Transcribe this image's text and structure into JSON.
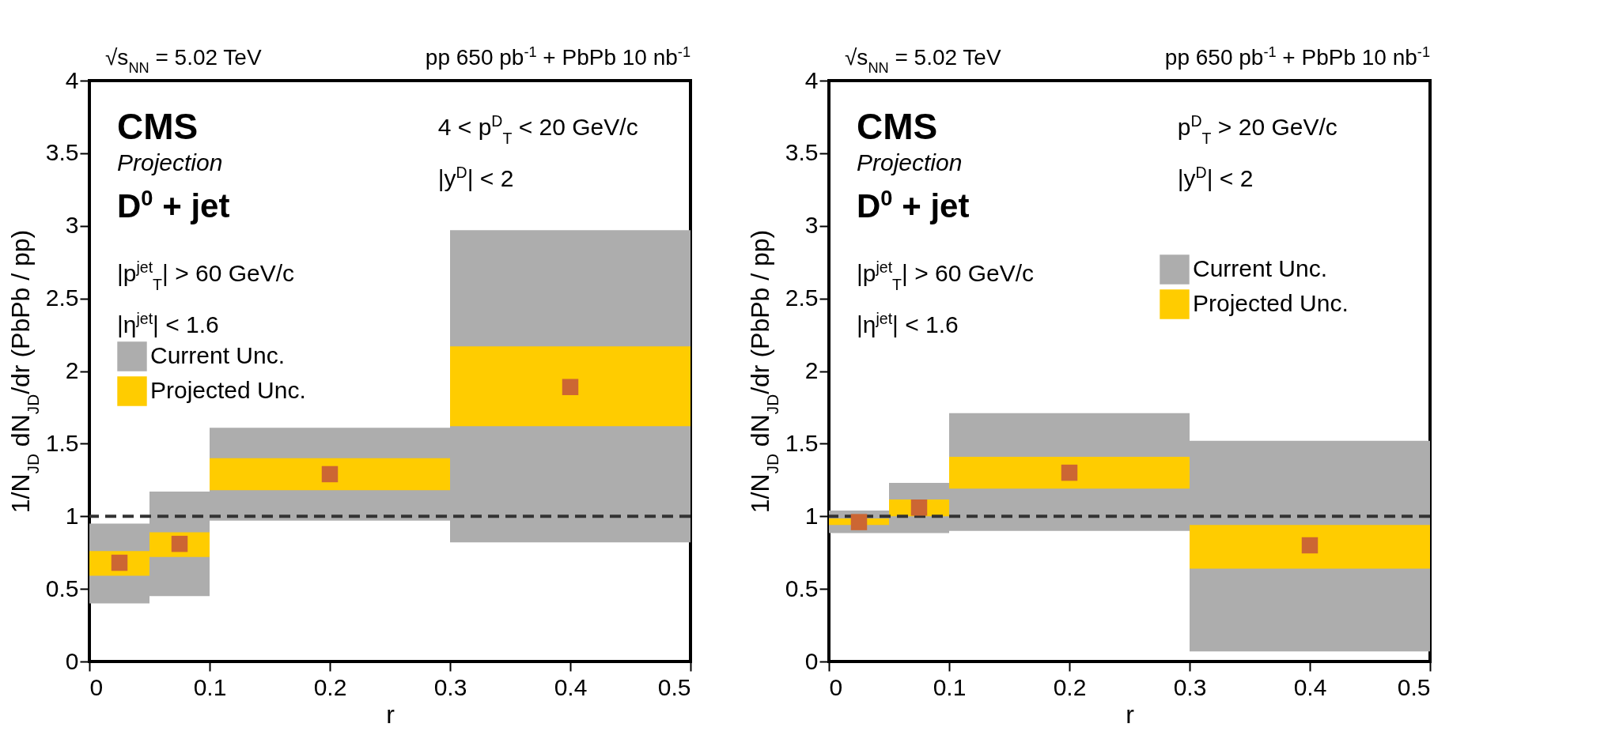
{
  "chart_data": [
    {
      "type": "histogram",
      "xlabel": "r",
      "ylabel": "1/N$_{JD}$ dN$_{JD}$/dr (PbPb / pp)",
      "xlim": [
        0,
        0.5
      ],
      "xticks": [
        0,
        0.1,
        0.2,
        0.3,
        0.4,
        0.5
      ],
      "ylim": [
        0,
        4
      ],
      "yticks": [
        0,
        0.5,
        1,
        1.5,
        2,
        2.5,
        3,
        3.5,
        4
      ],
      "grid": false,
      "legend": "left",
      "series": [
        {
          "name": "Current Unc.",
          "color": "#adadad",
          "bins": [
            0,
            0.05,
            0.1,
            0.3,
            0.5
          ],
          "base": [
            0.4,
            0.45,
            0.97,
            0.82
          ],
          "values": [
            0.55,
            0.72,
            0.64,
            2.15
          ]
        },
        {
          "name": "Projected Unc.",
          "color": "#ffcc00",
          "bins": [
            0,
            0.05,
            0.1,
            0.3,
            0.5
          ],
          "base": [
            0.59,
            0.72,
            1.18,
            1.62
          ],
          "values": [
            0.17,
            0.17,
            0.22,
            0.55
          ]
        },
        {
          "type": "scatter",
          "color": "#cc6633",
          "marker": "square",
          "x": [
            0.025,
            0.075,
            0.2,
            0.4
          ],
          "values": [
            0.68,
            0.81,
            1.29,
            1.89
          ]
        }
      ],
      "ref_lines": [
        {
          "axis": "y",
          "value": 1,
          "color": "#333333",
          "line_style": "dashed"
        }
      ],
      "annotations": [
        "√s$_{NN}$ = 5.02 TeV",
        "pp 650 pb$^{-1}$ + PbPb 10 nb$^{-1}$",
        "CMS",
        "Projection",
        "D$^{0}$ + jet",
        "|p$^{jet}$$_{T}$| > 60 GeV/c",
        "|η$^{jet}$| < 1.6",
        "4 < p$^{D}$$_{T}$ < 20 GeV/c",
        "|y$^{D}$| < 2"
      ]
    },
    {
      "type": "histogram",
      "xlabel": "r",
      "ylabel": "1/N$_{JD}$ dN$_{JD}$/dr (PbPb / pp)",
      "xlim": [
        0,
        0.5
      ],
      "xticks": [
        0,
        0.1,
        0.2,
        0.3,
        0.4,
        0.5
      ],
      "ylim": [
        0,
        4
      ],
      "yticks": [
        0,
        0.5,
        1,
        1.5,
        2,
        2.5,
        3,
        3.5,
        4
      ],
      "grid": false,
      "legend": "top right",
      "series": [
        {
          "name": "Current Unc.",
          "color": "#adadad",
          "bins": [
            0,
            0.05,
            0.1,
            0.3,
            0.5
          ],
          "base": [
            0.885,
            0.885,
            0.9,
            0.07
          ],
          "values": [
            0.155,
            0.345,
            0.81,
            1.45
          ]
        },
        {
          "name": "Projected Unc.",
          "color": "#ffcc00",
          "bins": [
            0,
            0.05,
            0.1,
            0.3,
            0.5
          ],
          "base": [
            0.94,
            1.0,
            1.19,
            0.64
          ],
          "values": [
            0.045,
            0.115,
            0.22,
            0.3
          ]
        },
        {
          "type": "scatter",
          "color": "#cc6633",
          "marker": "square",
          "x": [
            0.025,
            0.075,
            0.2,
            0.4
          ],
          "values": [
            0.96,
            1.06,
            1.3,
            0.8
          ]
        }
      ],
      "ref_lines": [
        {
          "axis": "y",
          "value": 1,
          "color": "#333333",
          "line_style": "dashed"
        }
      ],
      "annotations": [
        "√s$_{NN}$ = 5.02 TeV",
        "pp 650 pb$^{-1}$ + PbPb 10 nb$^{-1}$",
        "CMS",
        "Projection",
        "D$^{0}$ + jet",
        "|p$^{jet}$$_{T}$| > 60 GeV/c",
        "|η$^{jet}$| < 1.6",
        "p$^{D}$$_{T}$ > 20 GeV/c",
        "|y$^{D}$| < 2"
      ]
    }
  ]
}
